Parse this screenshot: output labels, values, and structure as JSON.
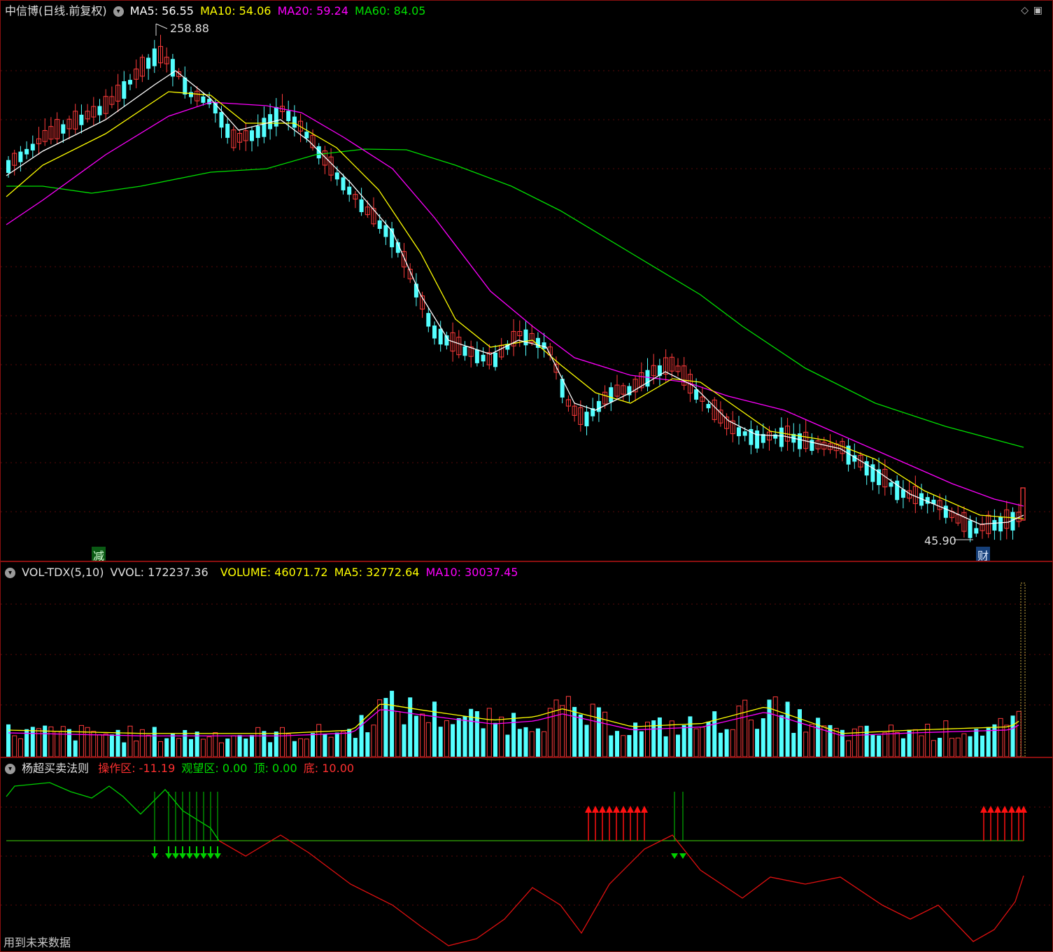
{
  "main": {
    "title": "中信博(日线.前复权)",
    "ma5": "MA5: 56.55",
    "ma10": "MA10: 54.06",
    "ma20": "MA20: 59.24",
    "ma60": "MA60: 84.05",
    "high_label": "258.88",
    "low_label": "45.90",
    "marker_jian": "减",
    "marker_cai": "财",
    "colors": {
      "up": "#ff3b3b",
      "down": "#54ffff",
      "ma5": "#ffffff",
      "ma10": "#ffff00",
      "ma20": "#ff00ff",
      "ma60": "#00e000"
    }
  },
  "volume": {
    "name": "VOL-TDX(5,10)",
    "vvol": "VVOL: 172237.36",
    "volume": "VOLUME: 46071.72",
    "ma5": "MA5: 32772.64",
    "ma10": "MA10: 30037.45"
  },
  "indicator": {
    "name": "杨超买卖法则",
    "op": "操作区: -11.19",
    "watch": "观望区: 0.00",
    "top": "顶: 0.00",
    "bottom": "底: 10.00"
  },
  "footer": {
    "future_data": "用到未来数据"
  }
}
